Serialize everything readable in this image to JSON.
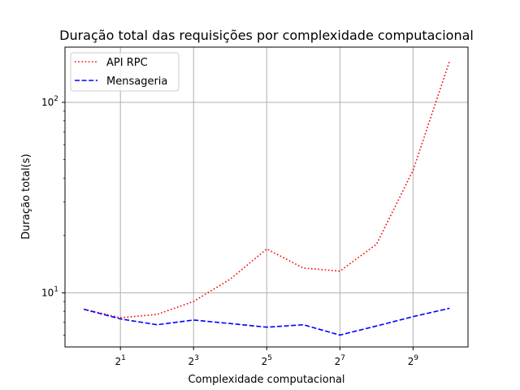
{
  "chart_data": {
    "type": "line",
    "title": "Duração total das requisições por complexidade computacional",
    "xlabel": "Complexidade computacional",
    "ylabel": "Duração total(s)",
    "x_scale": "log2",
    "y_scale": "log10",
    "xlim": [
      0.7,
      1450
    ],
    "ylim": [
      5.2,
      195
    ],
    "grid": true,
    "legend_placement": "top-left",
    "x": [
      1,
      2,
      4,
      8,
      16,
      32,
      64,
      128,
      256,
      512,
      1024
    ],
    "x_ticks": [
      {
        "value": 2,
        "base": "2",
        "exp": "1"
      },
      {
        "value": 8,
        "base": "2",
        "exp": "3"
      },
      {
        "value": 32,
        "base": "2",
        "exp": "5"
      },
      {
        "value": 128,
        "base": "2",
        "exp": "7"
      },
      {
        "value": 512,
        "base": "2",
        "exp": "9"
      }
    ],
    "y_ticks": [
      {
        "value": 10,
        "base": "10",
        "exp": "1"
      },
      {
        "value": 100,
        "base": "10",
        "exp": "2"
      }
    ],
    "series": [
      {
        "name": "API RPC",
        "color": "#ff0000",
        "style": "dotted",
        "values": [
          8.2,
          7.4,
          7.7,
          9.0,
          11.8,
          17.0,
          13.5,
          13.0,
          18.0,
          44.0,
          165.0
        ]
      },
      {
        "name": "Mensageria",
        "color": "#0000ff",
        "style": "dashed",
        "values": [
          8.2,
          7.3,
          6.8,
          7.2,
          6.9,
          6.6,
          6.8,
          6.0,
          6.7,
          7.5,
          8.3
        ]
      }
    ]
  }
}
